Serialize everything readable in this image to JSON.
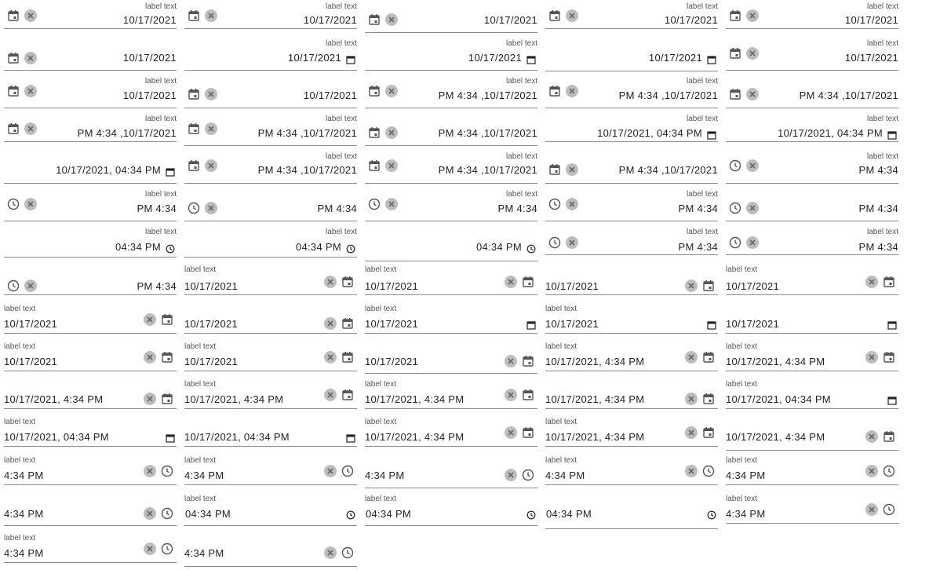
{
  "label": "label text",
  "fields": [
    {
      "dir": "rtl",
      "label": "label text",
      "value": "10/17/2021",
      "icons": [
        "calendar-icon",
        "clear-icon"
      ]
    },
    {
      "dir": "rtl",
      "label": "label text",
      "value": "10/17/2021",
      "icons": [
        "calendar-icon",
        "clear-icon"
      ]
    },
    {
      "dir": "rtl",
      "label": "",
      "value": "10/17/2021",
      "icons": [
        "calendar-icon",
        "clear-icon"
      ]
    },
    {
      "dir": "rtl",
      "label": "label text",
      "value": "10/17/2021",
      "icons": [
        "calendar-icon",
        "clear-icon"
      ]
    },
    {
      "dir": "rtl",
      "label": "label text",
      "value": "10/17/2021",
      "icons": [
        "calendar-icon",
        "clear-icon"
      ]
    },
    {
      "dir": "rtl",
      "label": "",
      "value": "10/17/2021",
      "icons": [
        "calendar-icon",
        "clear-icon"
      ]
    },
    {
      "dir": "rtl",
      "label": "label text",
      "value": "10/17/2021",
      "icons": [
        "native-calendar-icon"
      ]
    },
    {
      "dir": "rtl",
      "label": "label text",
      "value": "10/17/2021",
      "icons": [
        "native-calendar-icon"
      ]
    },
    {
      "dir": "rtl",
      "label": "",
      "value": "10/17/2021",
      "icons": [
        "native-calendar-icon"
      ]
    },
    {
      "dir": "rtl",
      "label": "label text",
      "value": "10/17/2021",
      "icons": [
        "calendar-icon",
        "clear-icon"
      ]
    },
    {
      "dir": "rtl",
      "label": "label text",
      "value": "10/17/2021",
      "icons": [
        "calendar-icon",
        "clear-icon"
      ]
    },
    {
      "dir": "rtl",
      "label": "",
      "value": "10/17/2021",
      "icons": [
        "calendar-icon",
        "clear-icon"
      ]
    },
    {
      "dir": "rtl",
      "label": "label text",
      "value": "PM 4:34 ,10/17/2021",
      "icons": [
        "calendar-icon",
        "clear-icon"
      ]
    },
    {
      "dir": "rtl",
      "label": "label text",
      "value": "PM 4:34 ,10/17/2021",
      "icons": [
        "calendar-icon",
        "clear-icon"
      ]
    },
    {
      "dir": "rtl",
      "label": "",
      "value": "PM 4:34 ,10/17/2021",
      "icons": [
        "calendar-icon",
        "clear-icon"
      ]
    },
    {
      "dir": "rtl",
      "label": "label text",
      "value": "PM 4:34 ,10/17/2021",
      "icons": [
        "calendar-icon",
        "clear-icon"
      ]
    },
    {
      "dir": "rtl",
      "label": "label text",
      "value": "PM 4:34 ,10/17/2021",
      "icons": [
        "calendar-icon",
        "clear-icon"
      ]
    },
    {
      "dir": "rtl",
      "label": "",
      "value": "PM 4:34 ,10/17/2021",
      "icons": [
        "calendar-icon",
        "clear-icon"
      ]
    },
    {
      "dir": "rtl",
      "label": "label text",
      "value": "10/17/2021, 04:34 PM",
      "icons": [
        "native-calendar-icon"
      ]
    },
    {
      "dir": "rtl",
      "label": "label text",
      "value": "10/17/2021, 04:34 PM",
      "icons": [
        "native-calendar-icon"
      ]
    },
    {
      "dir": "rtl",
      "label": "",
      "value": "10/17/2021, 04:34 PM",
      "icons": [
        "native-calendar-icon"
      ]
    },
    {
      "dir": "rtl",
      "label": "label text",
      "value": "PM 4:34 ,10/17/2021",
      "icons": [
        "calendar-icon",
        "clear-icon"
      ]
    },
    {
      "dir": "rtl",
      "label": "label text",
      "value": "PM 4:34 ,10/17/2021",
      "icons": [
        "calendar-icon",
        "clear-icon"
      ]
    },
    {
      "dir": "rtl",
      "label": "",
      "value": "PM 4:34 ,10/17/2021",
      "icons": [
        "calendar-icon",
        "clear-icon"
      ]
    },
    {
      "dir": "rtl",
      "label": "label text",
      "value": "PM 4:34",
      "icons": [
        "clock-icon",
        "clear-icon"
      ]
    },
    {
      "dir": "rtl",
      "label": "label text",
      "value": "PM 4:34",
      "icons": [
        "clock-icon",
        "clear-icon"
      ]
    },
    {
      "dir": "rtl",
      "label": "",
      "value": "PM 4:34",
      "icons": [
        "clock-icon",
        "clear-icon"
      ]
    },
    {
      "dir": "rtl",
      "label": "label text",
      "value": "PM 4:34",
      "icons": [
        "clock-icon",
        "clear-icon"
      ]
    },
    {
      "dir": "rtl",
      "label": "label text",
      "value": "PM 4:34",
      "icons": [
        "clock-icon",
        "clear-icon"
      ]
    },
    {
      "dir": "rtl",
      "label": "",
      "value": "PM 4:34",
      "icons": [
        "clock-icon",
        "clear-icon"
      ]
    },
    {
      "dir": "rtl",
      "label": "label text",
      "value": "04:34 PM",
      "icons": [
        "native-clock-icon"
      ]
    },
    {
      "dir": "rtl",
      "label": "label text",
      "value": "04:34 PM",
      "icons": [
        "native-clock-icon"
      ]
    },
    {
      "dir": "rtl",
      "label": "",
      "value": "04:34 PM",
      "icons": [
        "native-clock-icon"
      ]
    },
    {
      "dir": "rtl",
      "label": "label text",
      "value": "PM 4:34",
      "icons": [
        "clock-icon",
        "clear-icon"
      ]
    },
    {
      "dir": "rtl",
      "label": "label text",
      "value": "PM 4:34",
      "icons": [
        "clock-icon",
        "clear-icon"
      ]
    },
    {
      "dir": "rtl",
      "label": "",
      "value": "PM 4:34",
      "icons": [
        "clock-icon",
        "clear-icon"
      ]
    },
    {
      "dir": "ltr",
      "label": "label text",
      "value": "10/17/2021",
      "icons": [
        "clear-icon",
        "calendar-icon"
      ]
    },
    {
      "dir": "ltr",
      "label": "label text",
      "value": "10/17/2021",
      "icons": [
        "clear-icon",
        "calendar-icon"
      ]
    },
    {
      "dir": "ltr",
      "label": "",
      "value": "10/17/2021",
      "icons": [
        "clear-icon",
        "calendar-icon"
      ]
    },
    {
      "dir": "ltr",
      "label": "label text",
      "value": "10/17/2021",
      "icons": [
        "clear-icon",
        "calendar-icon"
      ]
    },
    {
      "dir": "ltr",
      "label": "label text",
      "value": "10/17/2021",
      "icons": [
        "clear-icon",
        "calendar-icon"
      ]
    },
    {
      "dir": "ltr",
      "label": "",
      "value": "10/17/2021",
      "icons": [
        "clear-icon",
        "calendar-icon"
      ]
    },
    {
      "dir": "ltr",
      "label": "label text",
      "value": "10/17/2021",
      "icons": [
        "native-calendar-icon"
      ]
    },
    {
      "dir": "ltr",
      "label": "label text",
      "value": "10/17/2021",
      "icons": [
        "native-calendar-icon"
      ]
    },
    {
      "dir": "ltr",
      "label": "",
      "value": "10/17/2021",
      "icons": [
        "native-calendar-icon"
      ]
    },
    {
      "dir": "ltr",
      "label": "label text",
      "value": "10/17/2021",
      "icons": [
        "clear-icon",
        "calendar-icon"
      ]
    },
    {
      "dir": "ltr",
      "label": "label text",
      "value": "10/17/2021",
      "icons": [
        "clear-icon",
        "calendar-icon"
      ]
    },
    {
      "dir": "ltr",
      "label": "",
      "value": "10/17/2021",
      "icons": [
        "clear-icon",
        "calendar-icon"
      ]
    },
    {
      "dir": "ltr",
      "label": "label text",
      "value": "10/17/2021, 4:34 PM",
      "icons": [
        "clear-icon",
        "calendar-icon"
      ]
    },
    {
      "dir": "ltr",
      "label": "label text",
      "value": "10/17/2021, 4:34 PM",
      "icons": [
        "clear-icon",
        "calendar-icon"
      ]
    },
    {
      "dir": "ltr",
      "label": "",
      "value": "10/17/2021, 4:34 PM",
      "icons": [
        "clear-icon",
        "calendar-icon"
      ]
    },
    {
      "dir": "ltr",
      "label": "label text",
      "value": "10/17/2021, 4:34 PM",
      "icons": [
        "clear-icon",
        "calendar-icon"
      ]
    },
    {
      "dir": "ltr",
      "label": "label text",
      "value": "10/17/2021, 4:34 PM",
      "icons": [
        "clear-icon",
        "calendar-icon"
      ]
    },
    {
      "dir": "ltr",
      "label": "",
      "value": "10/17/2021, 4:34 PM",
      "icons": [
        "clear-icon",
        "calendar-icon"
      ]
    },
    {
      "dir": "ltr",
      "label": "label text",
      "value": "10/17/2021, 04:34 PM",
      "icons": [
        "native-calendar-icon"
      ]
    },
    {
      "dir": "ltr",
      "label": "label text",
      "value": "10/17/2021, 04:34 PM",
      "icons": [
        "native-calendar-icon"
      ]
    },
    {
      "dir": "ltr",
      "label": "",
      "value": "10/17/2021, 04:34 PM",
      "icons": [
        "native-calendar-icon"
      ]
    },
    {
      "dir": "ltr",
      "label": "label text",
      "value": "10/17/2021, 4:34 PM",
      "icons": [
        "clear-icon",
        "calendar-icon"
      ]
    },
    {
      "dir": "ltr",
      "label": "label text",
      "value": "10/17/2021, 4:34 PM",
      "icons": [
        "clear-icon",
        "calendar-icon"
      ]
    },
    {
      "dir": "ltr",
      "label": "",
      "value": "10/17/2021, 4:34 PM",
      "icons": [
        "clear-icon",
        "calendar-icon"
      ]
    },
    {
      "dir": "ltr",
      "label": "label text",
      "value": "4:34 PM",
      "icons": [
        "clear-icon",
        "clock-icon"
      ]
    },
    {
      "dir": "ltr",
      "label": "label text",
      "value": "4:34 PM",
      "icons": [
        "clear-icon",
        "clock-icon"
      ]
    },
    {
      "dir": "ltr",
      "label": "",
      "value": "4:34 PM",
      "icons": [
        "clear-icon",
        "clock-icon"
      ]
    },
    {
      "dir": "ltr",
      "label": "label text",
      "value": "4:34 PM",
      "icons": [
        "clear-icon",
        "clock-icon"
      ]
    },
    {
      "dir": "ltr",
      "label": "label text",
      "value": "4:34 PM",
      "icons": [
        "clear-icon",
        "clock-icon"
      ]
    },
    {
      "dir": "ltr",
      "label": "",
      "value": "4:34 PM",
      "icons": [
        "clear-icon",
        "clock-icon"
      ]
    },
    {
      "dir": "ltr",
      "label": "label text",
      "value": "04:34 PM",
      "icons": [
        "native-clock-icon"
      ]
    },
    {
      "dir": "ltr",
      "label": "label text",
      "value": "04:34 PM",
      "icons": [
        "native-clock-icon"
      ]
    },
    {
      "dir": "ltr",
      "label": "",
      "value": "04:34 PM",
      "icons": [
        "native-clock-icon"
      ]
    },
    {
      "dir": "ltr",
      "label": "label text",
      "value": "4:34 PM",
      "icons": [
        "clear-icon",
        "clock-icon"
      ]
    },
    {
      "dir": "ltr",
      "label": "label text",
      "value": "4:34 PM",
      "icons": [
        "clear-icon",
        "clock-icon"
      ]
    },
    {
      "dir": "ltr",
      "label": "",
      "value": "4:34 PM",
      "icons": [
        "clear-icon",
        "clock-icon"
      ]
    }
  ]
}
